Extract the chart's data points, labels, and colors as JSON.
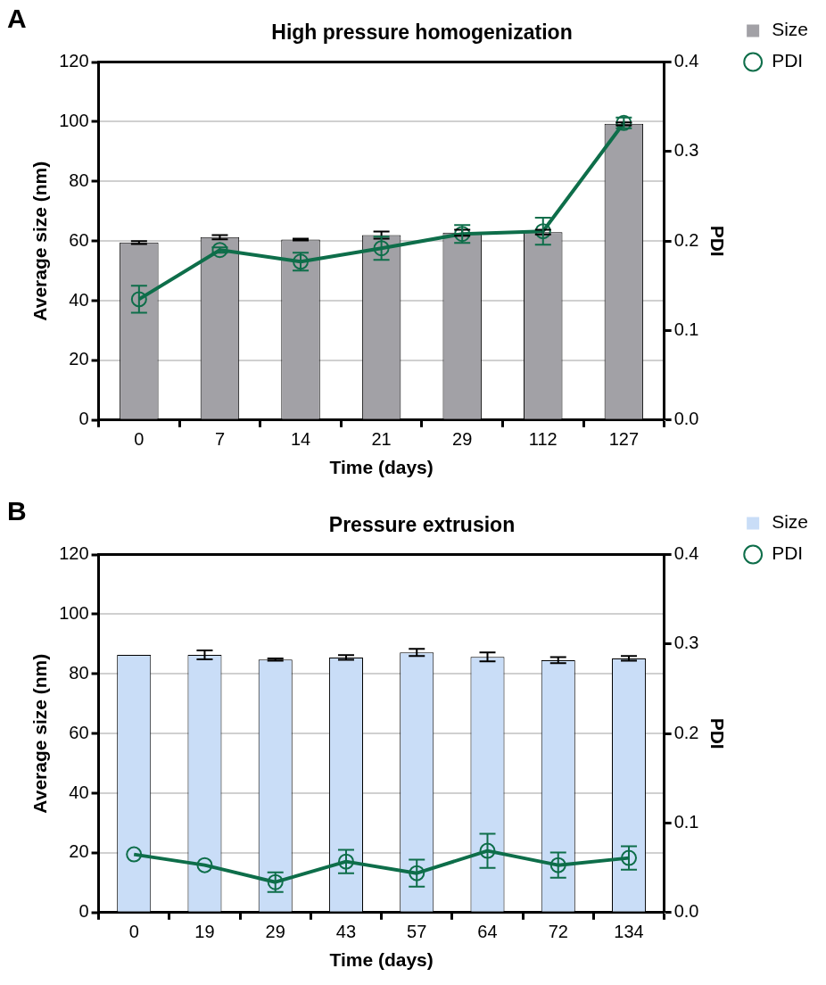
{
  "chart_data": [
    {
      "type": "bar",
      "title": "High pressure homogenization",
      "xlabel": "Time (days)",
      "ylabel": "Average size (nm)",
      "y2label": "PDI",
      "annotations": [
        "A"
      ],
      "categories": [
        "0",
        "7",
        "14",
        "21",
        "29",
        "112",
        "127"
      ],
      "series": [
        {
          "name": "Size",
          "color": "#a2a1a6",
          "values": [
            59.5,
            61.3,
            60.5,
            62,
            62.8,
            63,
            99.3
          ],
          "errors": [
            0.5,
            0.7,
            0.3,
            1.2,
            1,
            0.8,
            0.5
          ]
        },
        {
          "name": "PDI",
          "type": "line",
          "axis": "y2",
          "color": "#0e6e4a",
          "values": [
            0.135,
            0.19,
            0.177,
            0.192,
            0.208,
            0.211,
            0.332
          ],
          "errors": [
            0.015,
            0.003,
            0.01,
            0.013,
            0.01,
            0.015,
            0.006
          ]
        }
      ],
      "ylim": [
        0,
        120
      ],
      "yticks": [
        0,
        20,
        40,
        60,
        80,
        100,
        120
      ],
      "y2lim": [
        0,
        0.4
      ],
      "y2ticks": [
        {
          "value": 0,
          "label": "0.0"
        },
        0.1,
        0.2,
        0.3,
        0.4
      ],
      "grid": "y",
      "legend": "right",
      "marker": "circle",
      "line_style": "solid"
    },
    {
      "type": "bar",
      "title": "Pressure extrusion",
      "xlabel": "Time (days)",
      "ylabel": "Average size (nm)",
      "y2label": "PDI",
      "annotations": [
        "B"
      ],
      "categories": [
        "0",
        "19",
        "29",
        "43",
        "57",
        "64",
        "72",
        "134"
      ],
      "series": [
        {
          "name": "Size",
          "color": "#c9ddf7",
          "values": [
            86.4,
            86.4,
            84.8,
            85.5,
            87.2,
            85.7,
            84.6,
            85.2
          ],
          "errors": [
            null,
            1.5,
            0.4,
            0.8,
            1.2,
            1.5,
            1,
            0.8
          ]
        },
        {
          "name": "PDI",
          "type": "line",
          "axis": "y2",
          "color": "#0e6e4a",
          "values": [
            0.065,
            0.053,
            0.034,
            0.057,
            0.044,
            0.069,
            0.053,
            0.061
          ],
          "errors": [
            null,
            null,
            0.011,
            0.013,
            0.015,
            0.019,
            0.014,
            0.013
          ]
        }
      ],
      "ylim": [
        0,
        120
      ],
      "yticks": [
        0,
        20,
        40,
        60,
        80,
        100,
        120
      ],
      "y2lim": [
        0,
        0.4
      ],
      "y2ticks": [
        {
          "value": 0,
          "label": "0.0"
        },
        0.1,
        0.2,
        0.3,
        0.4
      ],
      "grid": "y",
      "legend": "right",
      "marker": "circle",
      "line_style": "solid"
    }
  ]
}
